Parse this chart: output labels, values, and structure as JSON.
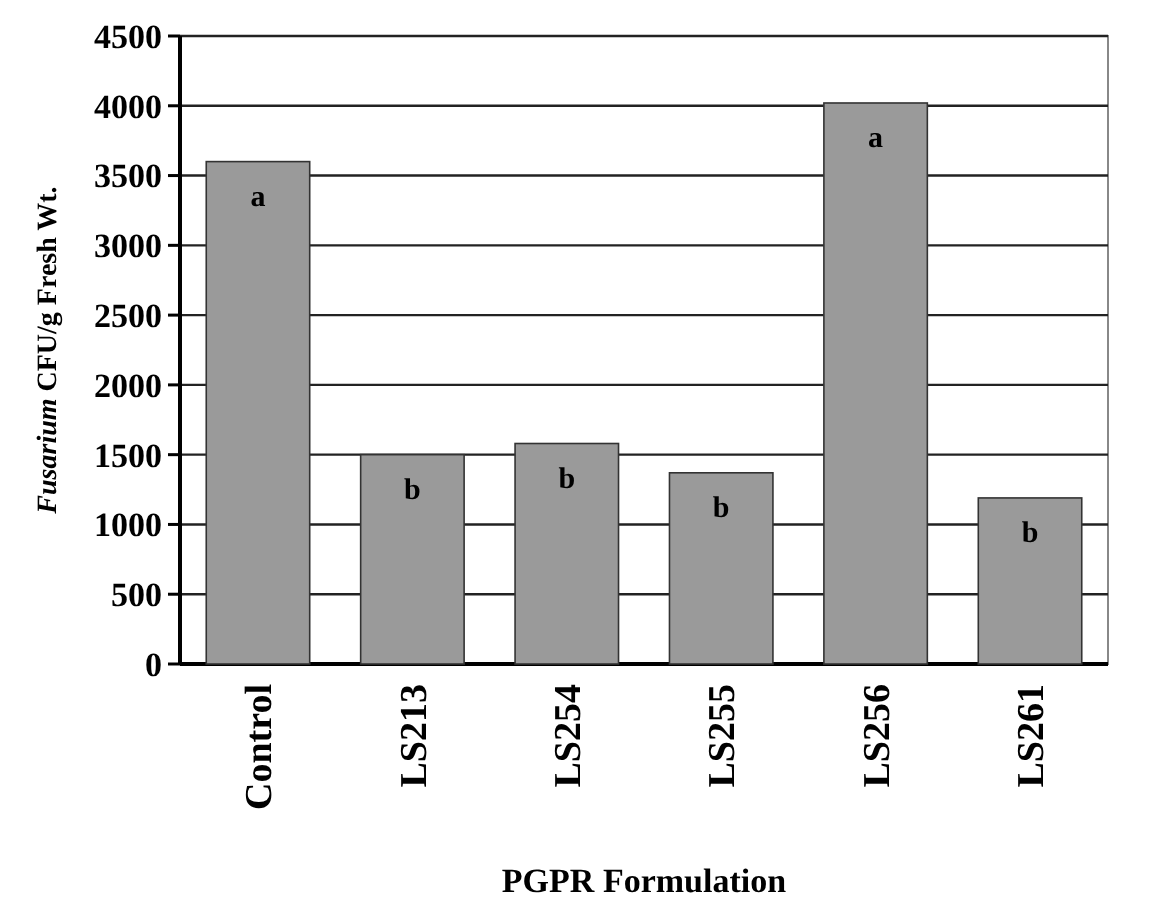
{
  "chart_data": {
    "type": "bar",
    "xlabel": "PGPR Formulation",
    "ylabel": "Fusarium CFU/g Fresh Wt.",
    "categories": [
      "Control",
      "LS213",
      "LS254",
      "LS255",
      "LS256",
      "LS261"
    ],
    "values": [
      3600,
      1500,
      1580,
      1370,
      4020,
      1190
    ],
    "color": "#9a9a9a",
    "ylim": [
      0,
      4500
    ],
    "yticks": [
      0,
      500,
      1000,
      1500,
      2000,
      2500,
      3000,
      3500,
      4000,
      4500
    ],
    "grid": "y",
    "annotations": [
      {
        "text": "a",
        "x": "Control",
        "y": 3600
      },
      {
        "text": "b",
        "x": "LS213",
        "y": 1500
      },
      {
        "text": "b",
        "x": "LS254",
        "y": 1580
      },
      {
        "text": "b",
        "x": "LS255",
        "y": 1370
      },
      {
        "text": "a",
        "x": "LS256",
        "y": 4020
      },
      {
        "text": "b",
        "x": "LS261",
        "y": 1190
      }
    ]
  }
}
